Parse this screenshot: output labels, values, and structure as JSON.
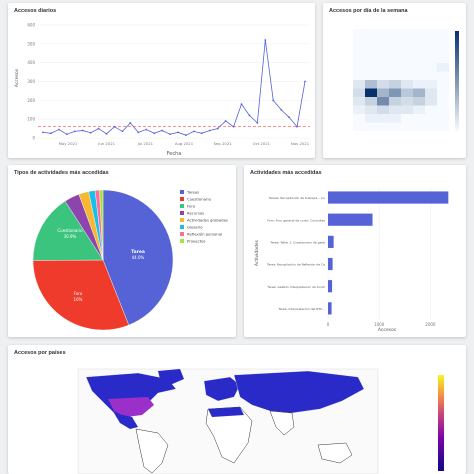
{
  "colors": {
    "primary": "#5563d6",
    "red": "#ef3b2c",
    "green": "#3ac47d",
    "orange": "#f7b731",
    "mean_line": "#ff4d4d"
  },
  "daily": {
    "title": "Accesos diarios",
    "xlabel": "Fecha",
    "ylabel": "Accesos",
    "y_ticks": [
      "0",
      "100",
      "200",
      "300",
      "400",
      "500",
      "600"
    ],
    "x_ticks": [
      "May 2021",
      "Jun 2021",
      "Jul 2021",
      "Aug 2021",
      "Sep 2021",
      "Oct 2021",
      "Nov 2021"
    ]
  },
  "weekday": {
    "title": "Accesos por día de la semana"
  },
  "types": {
    "title": "Tipos de actividades más accedidas",
    "slice_labels": [
      {
        "name": "Tarea",
        "pct": "44.0%"
      },
      {
        "name": "Cuestionario",
        "pct": "30.9%"
      },
      {
        "name": "Foro",
        "pct": "16%"
      }
    ],
    "legend": [
      "Tareas",
      "Cuestionario",
      "Foro",
      "Recursos",
      "Actividades grabadas",
      "Glosario",
      "Reflexión personal",
      "Proyectos"
    ]
  },
  "top_activities": {
    "title": "Actividades más accedidas",
    "ylabel": "Actividades",
    "xlabel": "Accesos",
    "x_ticks": [
      "0",
      "1000",
      "2000"
    ],
    "bars": [
      {
        "label": "Tareas: Recopilación de trabajos... Cuestionario 1...",
        "value": 2350
      },
      {
        "label": "Foro: Foro general de curso: Consultas sobre...",
        "value": 870
      },
      {
        "label": "Tarea: Taller 1: Cuestionario de gestión de...",
        "value": 110
      },
      {
        "label": "Tarea: Recopilación de Reflexión de Capítulo...",
        "value": 90
      },
      {
        "label": "Tarea: Gestión Interpretación de Contratos...",
        "value": 80
      },
      {
        "label": "Tarea: Interpretación del NTC...",
        "value": 70
      }
    ]
  },
  "countries": {
    "title": "Accesos por países"
  },
  "chart_data": [
    {
      "type": "line",
      "title": "Accesos diarios",
      "xlabel": "Fecha",
      "ylabel": "Accesos",
      "ylim": [
        0,
        600
      ],
      "x": [
        "2021-04-01",
        "2021-04-08",
        "2021-04-15",
        "2021-04-22",
        "2021-04-29",
        "2021-05-06",
        "2021-05-13",
        "2021-05-20",
        "2021-05-27",
        "2021-06-03",
        "2021-06-10",
        "2021-06-17",
        "2021-06-24",
        "2021-07-01",
        "2021-07-08",
        "2021-07-15",
        "2021-07-22",
        "2021-07-29",
        "2021-08-05",
        "2021-08-12",
        "2021-08-19",
        "2021-08-26",
        "2021-09-02",
        "2021-09-09",
        "2021-09-16",
        "2021-09-23",
        "2021-09-30",
        "2021-10-07",
        "2021-10-14",
        "2021-10-21",
        "2021-10-28",
        "2021-11-04",
        "2021-11-11",
        "2021-11-18"
      ],
      "values": [
        30,
        25,
        45,
        20,
        35,
        40,
        28,
        50,
        22,
        60,
        35,
        80,
        30,
        45,
        25,
        40,
        20,
        30,
        15,
        35,
        25,
        40,
        50,
        90,
        60,
        180,
        120,
        80,
        520,
        200,
        150,
        110,
        60,
        300
      ],
      "mean": 60
    },
    {
      "type": "heatmap",
      "title": "Accesos por día de la semana",
      "rows": 12,
      "cols": 8,
      "values": [
        [
          0,
          0,
          0,
          0,
          0,
          0,
          0,
          0
        ],
        [
          0,
          0,
          0,
          0,
          0,
          0,
          0,
          0
        ],
        [
          0,
          0,
          0,
          0,
          0,
          0,
          0,
          0
        ],
        [
          0,
          0,
          0,
          0,
          0,
          0,
          0,
          0
        ],
        [
          0,
          0,
          0,
          0,
          0,
          0,
          0,
          0.05
        ],
        [
          0,
          0,
          0,
          0,
          0,
          0,
          0,
          0
        ],
        [
          0.1,
          0.3,
          0.15,
          0.2,
          0.1,
          0.05,
          0.05,
          0
        ],
        [
          0.15,
          1.0,
          0.35,
          0.5,
          0.25,
          0.35,
          0.1,
          0
        ],
        [
          0.1,
          0.2,
          0.55,
          0.2,
          0.15,
          0.2,
          0.1,
          0
        ],
        [
          0.05,
          0.1,
          0.15,
          0.1,
          0.1,
          0.05,
          0,
          0
        ],
        [
          0,
          0.05,
          0.05,
          0.05,
          0,
          0,
          0,
          0
        ],
        [
          0,
          0,
          0,
          0,
          0,
          0,
          0,
          0
        ]
      ]
    },
    {
      "type": "pie",
      "title": "Tipos de actividades más accedidas",
      "labels": [
        "Tareas",
        "Cuestionario",
        "Foro",
        "Recursos",
        "Actividades grabadas",
        "Glosario",
        "Reflexión personal",
        "Proyectos"
      ],
      "values": [
        44.0,
        30.9,
        16.0,
        3.5,
        2.3,
        1.5,
        1.0,
        0.8
      ],
      "colors": [
        "#5563d6",
        "#ef3b2c",
        "#3ac47d",
        "#8e44ad",
        "#f7b731",
        "#17c0eb",
        "#ff6b9d",
        "#a3e635"
      ]
    },
    {
      "type": "bar",
      "orientation": "horizontal",
      "title": "Actividades más accedidas",
      "xlabel": "Accesos",
      "ylabel": "Actividades",
      "xlim": [
        0,
        2500
      ],
      "values": [
        2350,
        870,
        110,
        90,
        80,
        70
      ]
    }
  ]
}
